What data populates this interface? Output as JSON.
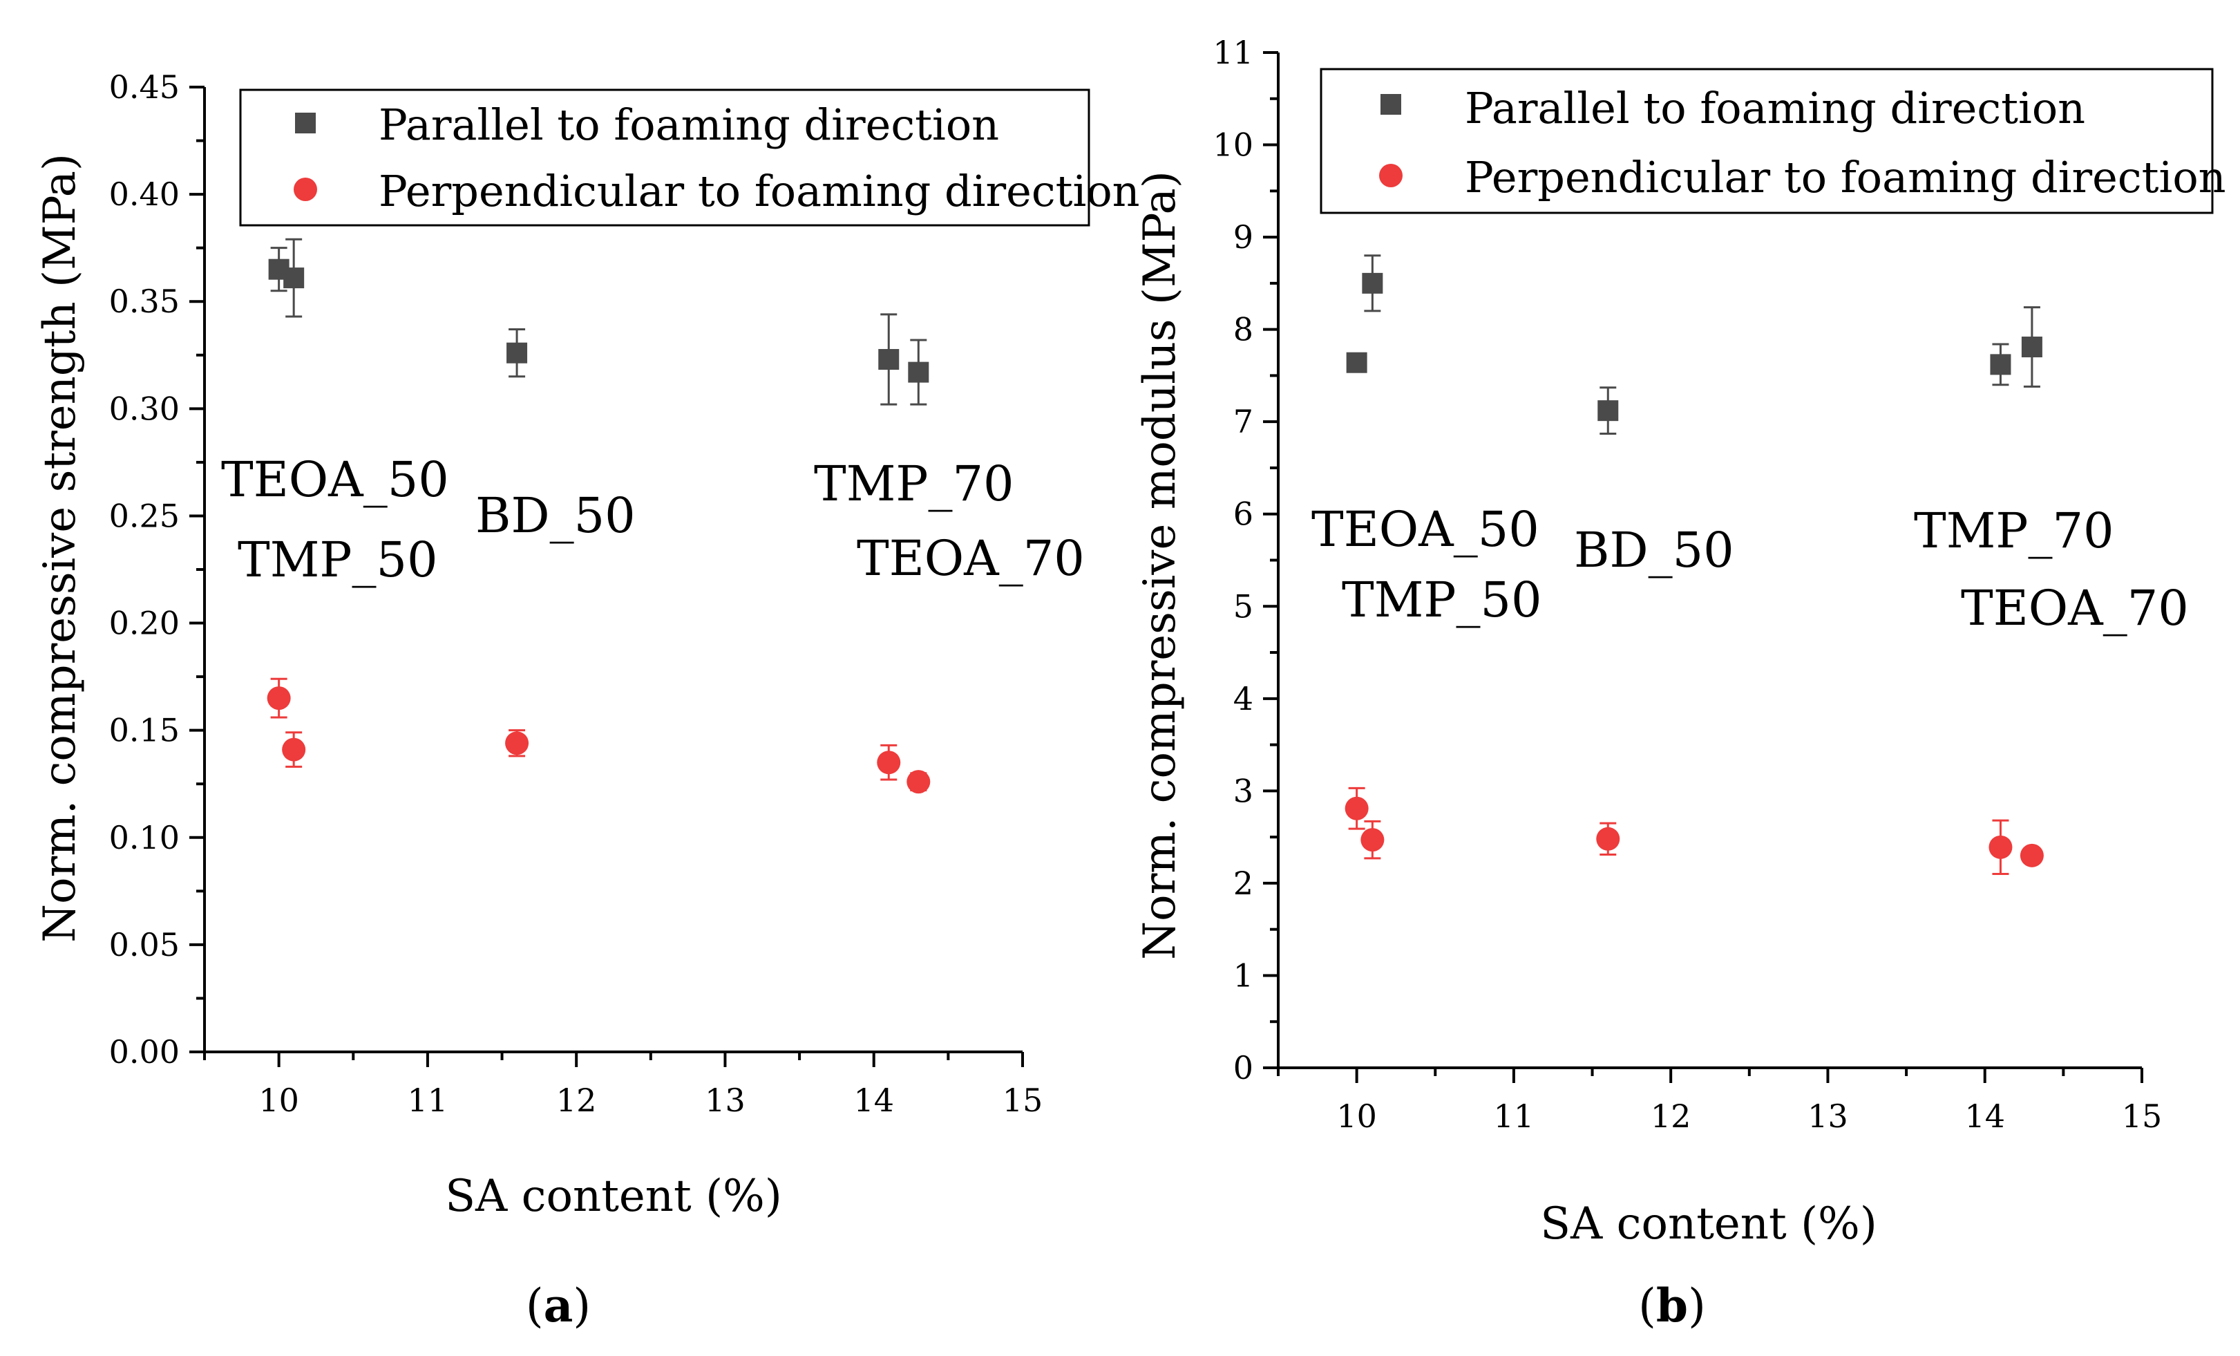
{
  "colors": {
    "parallel": "#4a4a4a",
    "perpendicular": "#ee3b3b",
    "axis": "#000000"
  },
  "chart_data": [
    {
      "type": "scatter",
      "panel_label": "a",
      "xlabel": "SA content (%)",
      "ylabel": "Norm. compressive strength (MPa)",
      "xlim": [
        9.5,
        15
      ],
      "ylim": [
        0,
        0.45
      ],
      "xticks": [
        "10",
        "11",
        "12",
        "13",
        "14",
        "15"
      ],
      "yticks": [
        "0.00",
        "0.05",
        "0.10",
        "0.15",
        "0.20",
        "0.25",
        "0.30",
        "0.35",
        "0.40",
        "0.45"
      ],
      "grid": false,
      "legend_position": "top-right",
      "series": [
        {
          "name": "Parallel to foaming direction",
          "marker": "square",
          "x": [
            10.0,
            10.1,
            11.6,
            14.1,
            14.3
          ],
          "y": [
            0.365,
            0.361,
            0.326,
            0.323,
            0.317
          ],
          "err": [
            0.01,
            0.018,
            0.011,
            0.021,
            0.015
          ]
        },
        {
          "name": "Perpendicular to foaming direction",
          "marker": "circle",
          "x": [
            10.0,
            10.1,
            11.6,
            14.1,
            14.3
          ],
          "y": [
            0.165,
            0.141,
            0.144,
            0.135,
            0.126
          ],
          "err": [
            0.009,
            0.008,
            0.006,
            0.008,
            0.004
          ]
        }
      ],
      "annotations": [
        "TEOA_50",
        "TMP_50",
        "BD_50",
        "TMP_70",
        "TEOA_70"
      ]
    },
    {
      "type": "scatter",
      "panel_label": "b",
      "xlabel": "SA content (%)",
      "ylabel": "Norm. compressive modulus (MPa)",
      "xlim": [
        9.5,
        15
      ],
      "ylim": [
        0,
        11
      ],
      "xticks": [
        "10",
        "11",
        "12",
        "13",
        "14",
        "15"
      ],
      "yticks": [
        "0",
        "1",
        "2",
        "3",
        "4",
        "5",
        "6",
        "7",
        "8",
        "9",
        "10",
        "11"
      ],
      "grid": false,
      "legend_position": "top-right",
      "series": [
        {
          "name": "Parallel to foaming direction",
          "marker": "square",
          "x": [
            10.0,
            10.1,
            11.6,
            14.1,
            14.3
          ],
          "y": [
            7.64,
            8.5,
            7.12,
            7.62,
            7.81
          ],
          "err": [
            0.0,
            0.3,
            0.25,
            0.22,
            0.43
          ]
        },
        {
          "name": "Perpendicular to foaming direction",
          "marker": "circle",
          "x": [
            10.0,
            10.1,
            11.6,
            14.1,
            14.3
          ],
          "y": [
            2.81,
            2.47,
            2.48,
            2.39,
            2.3
          ],
          "err": [
            0.22,
            0.2,
            0.17,
            0.29,
            0.07
          ]
        }
      ],
      "annotations": [
        "TEOA_50",
        "TMP_50",
        "BD_50",
        "TMP_70",
        "TEOA_70"
      ]
    }
  ]
}
